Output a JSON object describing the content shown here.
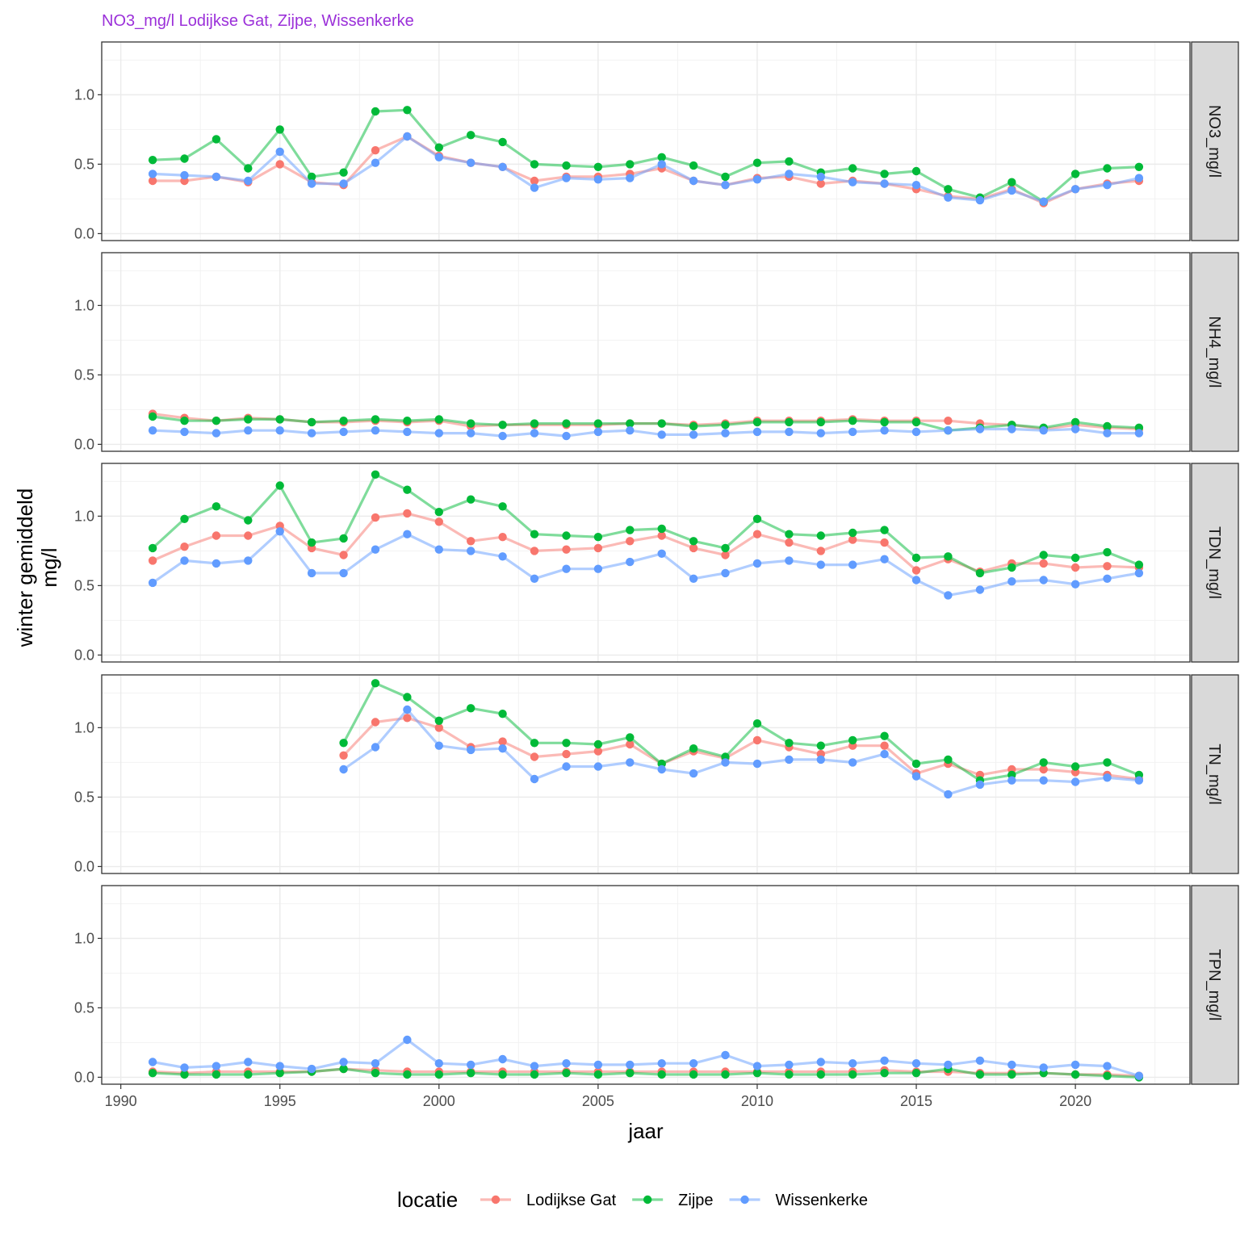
{
  "chart_data": {
    "type": "line",
    "title": "NO3_mg/l Lodijkse Gat, Zijpe, Wissenkerke",
    "title_color": "#9b30d9",
    "xlabel": "jaar",
    "ylabel_lines": [
      "winter gemiddeld",
      "mg/l"
    ],
    "xlim": [
      1989.4,
      2023.6
    ],
    "ylim": [
      -0.05,
      1.38
    ],
    "x_ticks": [
      1990,
      1995,
      2000,
      2005,
      2010,
      2015,
      2020
    ],
    "y_ticks": [
      0.0,
      0.5,
      1.0
    ],
    "y_tick_labels": [
      "0.0",
      "0.5",
      "1.0"
    ],
    "grid": true,
    "legend_position": "bottom",
    "legend_title": "locatie",
    "series_names": [
      "Lodijkse Gat",
      "Zijpe",
      "Wissenkerke"
    ],
    "colors": {
      "Lodijkse Gat": "#f8766d",
      "Zijpe": "#00ba38",
      "Wissenkerke": "#619cff"
    },
    "years": [
      1991,
      1992,
      1993,
      1994,
      1995,
      1996,
      1997,
      1998,
      1999,
      2000,
      2001,
      2002,
      2003,
      2004,
      2005,
      2006,
      2007,
      2008,
      2009,
      2010,
      2011,
      2012,
      2013,
      2014,
      2015,
      2016,
      2017,
      2018,
      2019,
      2020,
      2021,
      2022
    ],
    "panels": [
      {
        "label": "NO3_mg/l",
        "series": [
          {
            "name": "Lodijkse Gat",
            "values": [
              0.38,
              0.38,
              0.41,
              0.37,
              0.5,
              0.37,
              0.35,
              0.6,
              0.7,
              0.56,
              0.51,
              0.48,
              0.38,
              0.41,
              0.41,
              0.43,
              0.47,
              0.38,
              0.35,
              0.4,
              0.41,
              0.36,
              0.38,
              0.36,
              0.32,
              0.27,
              0.25,
              0.32,
              0.22,
              0.32,
              0.36,
              0.38
            ]
          },
          {
            "name": "Zijpe",
            "values": [
              0.53,
              0.54,
              0.68,
              0.47,
              0.75,
              0.41,
              0.44,
              0.88,
              0.89,
              0.62,
              0.71,
              0.66,
              0.5,
              0.49,
              0.48,
              0.5,
              0.55,
              0.49,
              0.41,
              0.51,
              0.52,
              0.44,
              0.47,
              0.43,
              0.45,
              0.32,
              0.26,
              0.37,
              0.23,
              0.43,
              0.47,
              0.48
            ]
          },
          {
            "name": "Wissenkerke",
            "values": [
              0.43,
              0.42,
              0.41,
              0.38,
              0.59,
              0.36,
              0.36,
              0.51,
              0.7,
              0.55,
              0.51,
              0.48,
              0.33,
              0.4,
              0.39,
              0.4,
              0.5,
              0.38,
              0.35,
              0.39,
              0.43,
              0.41,
              0.37,
              0.36,
              0.35,
              0.26,
              0.24,
              0.31,
              0.23,
              0.32,
              0.35,
              0.4
            ]
          }
        ]
      },
      {
        "label": "NH4_mg/l",
        "series": [
          {
            "name": "Lodijkse Gat",
            "values": [
              0.22,
              0.19,
              0.17,
              0.19,
              0.18,
              0.16,
              0.16,
              0.17,
              0.16,
              0.17,
              0.13,
              0.14,
              0.14,
              0.14,
              0.14,
              0.15,
              0.15,
              0.14,
              0.15,
              0.17,
              0.17,
              0.17,
              0.18,
              0.17,
              0.17,
              0.17,
              0.15,
              0.14,
              0.11,
              0.14,
              0.12,
              0.11
            ]
          },
          {
            "name": "Zijpe",
            "values": [
              0.2,
              0.17,
              0.17,
              0.18,
              0.18,
              0.16,
              0.17,
              0.18,
              0.17,
              0.18,
              0.15,
              0.14,
              0.15,
              0.15,
              0.15,
              0.15,
              0.15,
              0.13,
              0.14,
              0.16,
              0.16,
              0.16,
              0.17,
              0.16,
              0.16,
              0.1,
              0.12,
              0.14,
              0.12,
              0.16,
              0.13,
              0.12
            ]
          },
          {
            "name": "Wissenkerke",
            "values": [
              0.1,
              0.09,
              0.08,
              0.1,
              0.1,
              0.08,
              0.09,
              0.1,
              0.09,
              0.08,
              0.08,
              0.06,
              0.08,
              0.06,
              0.09,
              0.1,
              0.07,
              0.07,
              0.08,
              0.09,
              0.09,
              0.08,
              0.09,
              0.1,
              0.09,
              0.1,
              0.11,
              0.11,
              0.1,
              0.11,
              0.08,
              0.08
            ]
          }
        ]
      },
      {
        "label": "TDN_mg/l",
        "series": [
          {
            "name": "Lodijkse Gat",
            "values": [
              0.68,
              0.78,
              0.86,
              0.86,
              0.93,
              0.77,
              0.72,
              0.99,
              1.02,
              0.96,
              0.82,
              0.85,
              0.75,
              0.76,
              0.77,
              0.82,
              0.86,
              0.77,
              0.72,
              0.87,
              0.81,
              0.75,
              0.83,
              0.81,
              0.61,
              0.69,
              0.6,
              0.66,
              0.66,
              0.63,
              0.64,
              0.63
            ]
          },
          {
            "name": "Zijpe",
            "values": [
              0.77,
              0.98,
              1.07,
              0.97,
              1.22,
              0.81,
              0.84,
              1.3,
              1.19,
              1.03,
              1.12,
              1.07,
              0.87,
              0.86,
              0.85,
              0.9,
              0.91,
              0.82,
              0.77,
              0.98,
              0.87,
              0.86,
              0.88,
              0.9,
              0.7,
              0.71,
              0.59,
              0.63,
              0.72,
              0.7,
              0.74,
              0.65
            ]
          },
          {
            "name": "Wissenkerke",
            "values": [
              0.52,
              0.68,
              0.66,
              0.68,
              0.89,
              0.59,
              0.59,
              0.76,
              0.87,
              0.76,
              0.75,
              0.71,
              0.55,
              0.62,
              0.62,
              0.67,
              0.73,
              0.55,
              0.59,
              0.66,
              0.68,
              0.65,
              0.65,
              0.69,
              0.54,
              0.43,
              0.47,
              0.53,
              0.54,
              0.51,
              0.55,
              0.59
            ]
          }
        ]
      },
      {
        "label": "TN_mg/l",
        "series": [
          {
            "name": "Lodijkse Gat",
            "values": [
              null,
              null,
              null,
              null,
              null,
              null,
              0.8,
              1.04,
              1.07,
              1.0,
              0.86,
              0.9,
              0.79,
              0.81,
              0.83,
              0.88,
              0.74,
              0.83,
              0.78,
              0.91,
              0.86,
              0.81,
              0.87,
              0.87,
              0.67,
              0.74,
              0.66,
              0.7,
              0.7,
              0.68,
              0.66,
              0.63
            ]
          },
          {
            "name": "Zijpe",
            "values": [
              null,
              null,
              null,
              null,
              null,
              null,
              0.89,
              1.32,
              1.22,
              1.05,
              1.14,
              1.1,
              0.89,
              0.89,
              0.88,
              0.93,
              0.74,
              0.85,
              0.79,
              1.03,
              0.89,
              0.87,
              0.91,
              0.94,
              0.74,
              0.77,
              0.62,
              0.66,
              0.75,
              0.72,
              0.75,
              0.66
            ]
          },
          {
            "name": "Wissenkerke",
            "values": [
              null,
              null,
              null,
              null,
              null,
              null,
              0.7,
              0.86,
              1.13,
              0.87,
              0.84,
              0.85,
              0.63,
              0.72,
              0.72,
              0.75,
              0.7,
              0.67,
              0.75,
              0.74,
              0.77,
              0.77,
              0.75,
              0.81,
              0.65,
              0.52,
              0.59,
              0.62,
              0.62,
              0.61,
              0.64,
              0.62
            ]
          }
        ]
      },
      {
        "label": "TPN_mg/l",
        "series": [
          {
            "name": "Lodijkse Gat",
            "values": [
              0.04,
              0.03,
              0.04,
              0.04,
              0.04,
              0.04,
              0.06,
              0.05,
              0.04,
              0.04,
              0.04,
              0.04,
              0.04,
              0.04,
              0.04,
              0.04,
              0.04,
              0.04,
              0.04,
              0.04,
              0.04,
              0.04,
              0.04,
              0.05,
              0.04,
              0.04,
              0.03,
              0.03,
              0.03,
              0.02,
              0.02,
              0.01
            ]
          },
          {
            "name": "Zijpe",
            "values": [
              0.03,
              0.02,
              0.02,
              0.02,
              0.03,
              0.04,
              0.06,
              0.03,
              0.02,
              0.02,
              0.03,
              0.02,
              0.02,
              0.03,
              0.02,
              0.03,
              0.02,
              0.02,
              0.02,
              0.03,
              0.02,
              0.02,
              0.02,
              0.03,
              0.03,
              0.06,
              0.02,
              0.02,
              0.03,
              0.02,
              0.01,
              0.0
            ]
          },
          {
            "name": "Wissenkerke",
            "values": [
              0.11,
              0.07,
              0.08,
              0.11,
              0.08,
              0.06,
              0.11,
              0.1,
              0.27,
              0.1,
              0.09,
              0.13,
              0.08,
              0.1,
              0.09,
              0.09,
              0.1,
              0.1,
              0.16,
              0.08,
              0.09,
              0.11,
              0.1,
              0.12,
              0.1,
              0.09,
              0.12,
              0.09,
              0.07,
              0.09,
              0.08,
              0.01
            ]
          }
        ]
      }
    ]
  }
}
